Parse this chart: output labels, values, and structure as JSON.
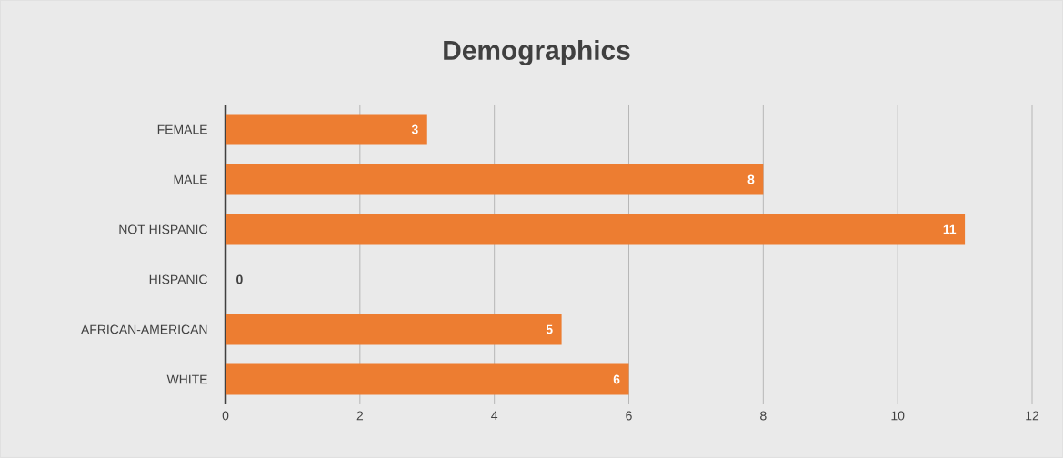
{
  "chart_data": {
    "type": "bar",
    "orientation": "horizontal",
    "title": "Demographics",
    "categories": [
      "FEMALE",
      "MALE",
      "NOT HISPANIC",
      "HISPANIC",
      "AFRICAN-AMERICAN",
      "WHITE"
    ],
    "values": [
      3,
      8,
      11,
      0,
      5,
      6
    ],
    "color": "#ed7d31",
    "xlim": [
      0,
      12
    ],
    "xticks": [
      0,
      2,
      4,
      6,
      8,
      10,
      12
    ],
    "grid": "x",
    "data_labels": true
  }
}
